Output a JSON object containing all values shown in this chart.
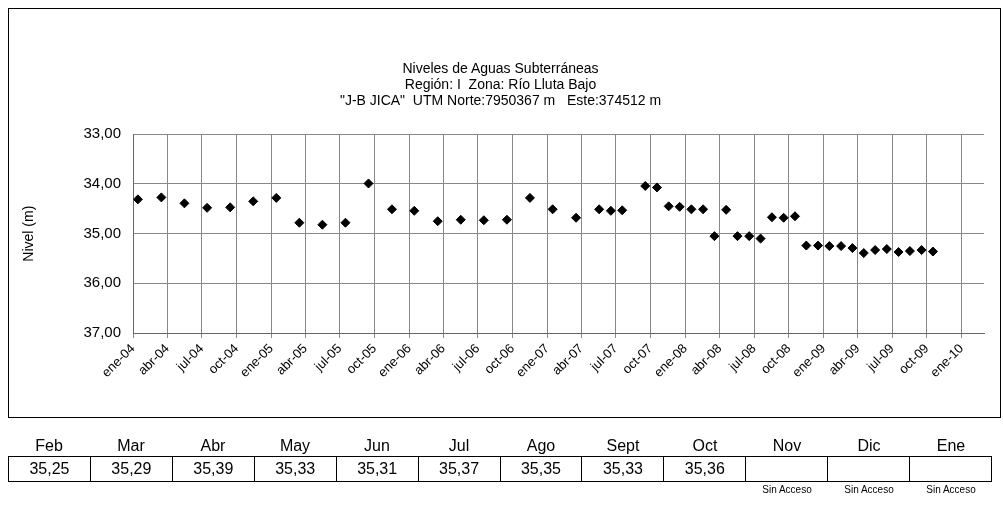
{
  "chart_data": [
    {
      "type": "scatter",
      "title": [
        "Niveles de Aguas Subterráneas",
        "Región: I  Zona: Río Lluta Bajo",
        "\"J-B JICA\"  UTM Norte:7950367 m   Este:374512 m"
      ],
      "ylabel": "Nivel (m)",
      "x": [
        "2004-01-14",
        "2004-03-16",
        "2004-05-16",
        "2004-07-15",
        "2004-09-14",
        "2004-11-14",
        "2005-01-14",
        "2005-03-16",
        "2005-05-16",
        "2005-07-16",
        "2005-09-15",
        "2005-11-16",
        "2006-01-14",
        "2006-03-17",
        "2006-05-17",
        "2006-07-17",
        "2006-09-16",
        "2006-11-16",
        "2007-01-15",
        "2007-03-18",
        "2007-05-18",
        "2007-06-18",
        "2007-07-18",
        "2007-09-17",
        "2007-10-18",
        "2007-11-18",
        "2007-12-17",
        "2008-01-17",
        "2008-02-17",
        "2008-03-18",
        "2008-04-18",
        "2008-05-18",
        "2008-06-18",
        "2008-07-18",
        "2008-08-17",
        "2008-09-17",
        "2008-10-17",
        "2008-11-16",
        "2008-12-17",
        "2009-01-16",
        "2009-02-16",
        "2009-03-18",
        "2009-04-17",
        "2009-05-17",
        "2009-06-17",
        "2009-07-18",
        "2009-08-17",
        "2009-09-17",
        "2009-10-17"
      ],
      "series": [
        {
          "color": "#000000",
          "values": [
            34.31,
            34.27,
            34.39,
            34.48,
            34.47,
            34.35,
            34.28,
            34.78,
            34.82,
            34.78,
            33.99,
            34.51,
            34.54,
            34.75,
            34.72,
            34.73,
            34.72,
            34.28,
            34.51,
            34.68,
            34.51,
            34.54,
            34.53,
            34.04,
            34.07,
            34.45,
            34.46,
            34.51,
            34.51,
            35.05,
            34.52,
            35.05,
            35.05,
            35.1,
            34.67,
            34.68,
            34.65,
            35.24,
            35.24,
            35.25,
            35.25,
            35.29,
            35.39,
            35.33,
            35.31,
            35.37,
            35.35,
            35.33,
            35.36
          ]
        }
      ],
      "xlim": [
        "2004-01-01",
        "2010-03-01"
      ],
      "xticks": [
        {
          "value": "2004-01-01",
          "label": "ene-04"
        },
        {
          "value": "2004-04-01",
          "label": "abr-04"
        },
        {
          "value": "2004-07-01",
          "label": "jul-04"
        },
        {
          "value": "2004-10-01",
          "label": "oct-04"
        },
        {
          "value": "2005-01-01",
          "label": "ene-05"
        },
        {
          "value": "2005-04-01",
          "label": "abr-05"
        },
        {
          "value": "2005-07-01",
          "label": "jul-05"
        },
        {
          "value": "2005-10-01",
          "label": "oct-05"
        },
        {
          "value": "2006-01-01",
          "label": "ene-06"
        },
        {
          "value": "2006-04-01",
          "label": "abr-06"
        },
        {
          "value": "2006-07-01",
          "label": "jul-06"
        },
        {
          "value": "2006-10-01",
          "label": "oct-06"
        },
        {
          "value": "2007-01-01",
          "label": "ene-07"
        },
        {
          "value": "2007-04-01",
          "label": "abr-07"
        },
        {
          "value": "2007-07-01",
          "label": "jul-07"
        },
        {
          "value": "2007-10-01",
          "label": "oct-07"
        },
        {
          "value": "2008-01-01",
          "label": "ene-08"
        },
        {
          "value": "2008-04-01",
          "label": "abr-08"
        },
        {
          "value": "2008-07-01",
          "label": "jul-08"
        },
        {
          "value": "2008-10-01",
          "label": "oct-08"
        },
        {
          "value": "2009-01-01",
          "label": "ene-09"
        },
        {
          "value": "2009-04-01",
          "label": "abr-09"
        },
        {
          "value": "2009-07-01",
          "label": "jul-09"
        },
        {
          "value": "2009-10-01",
          "label": "oct-09"
        },
        {
          "value": "2010-01-01",
          "label": "ene-10"
        }
      ],
      "ylim": [
        37,
        33
      ],
      "yticks": [
        {
          "value": 33,
          "label": "33,00"
        },
        {
          "value": 34,
          "label": "34,00"
        },
        {
          "value": 35,
          "label": "35,00"
        },
        {
          "value": 36,
          "label": "36,00"
        },
        {
          "value": 37,
          "label": "37,00"
        }
      ],
      "grid": true,
      "marker": "diamond",
      "legend": false
    },
    {
      "type": "other",
      "categories": [
        "Feb",
        "Mar",
        "Abr",
        "May",
        "Jun",
        "Jul",
        "Ago",
        "Sept",
        "Oct",
        "Nov",
        "Dic",
        "Ene"
      ],
      "value_labels": [
        "35,25",
        "35,29",
        "35,39",
        "35,33",
        "35,31",
        "35,37",
        "35,35",
        "35,33",
        "35,36",
        null,
        null,
        null
      ],
      "annotations": [
        {
          "text": "Sin Acceso",
          "x": "Nov"
        },
        {
          "text": "Sin Acceso",
          "x": "Dic"
        },
        {
          "text": "Sin Acceso",
          "x": "Ene"
        }
      ]
    }
  ]
}
